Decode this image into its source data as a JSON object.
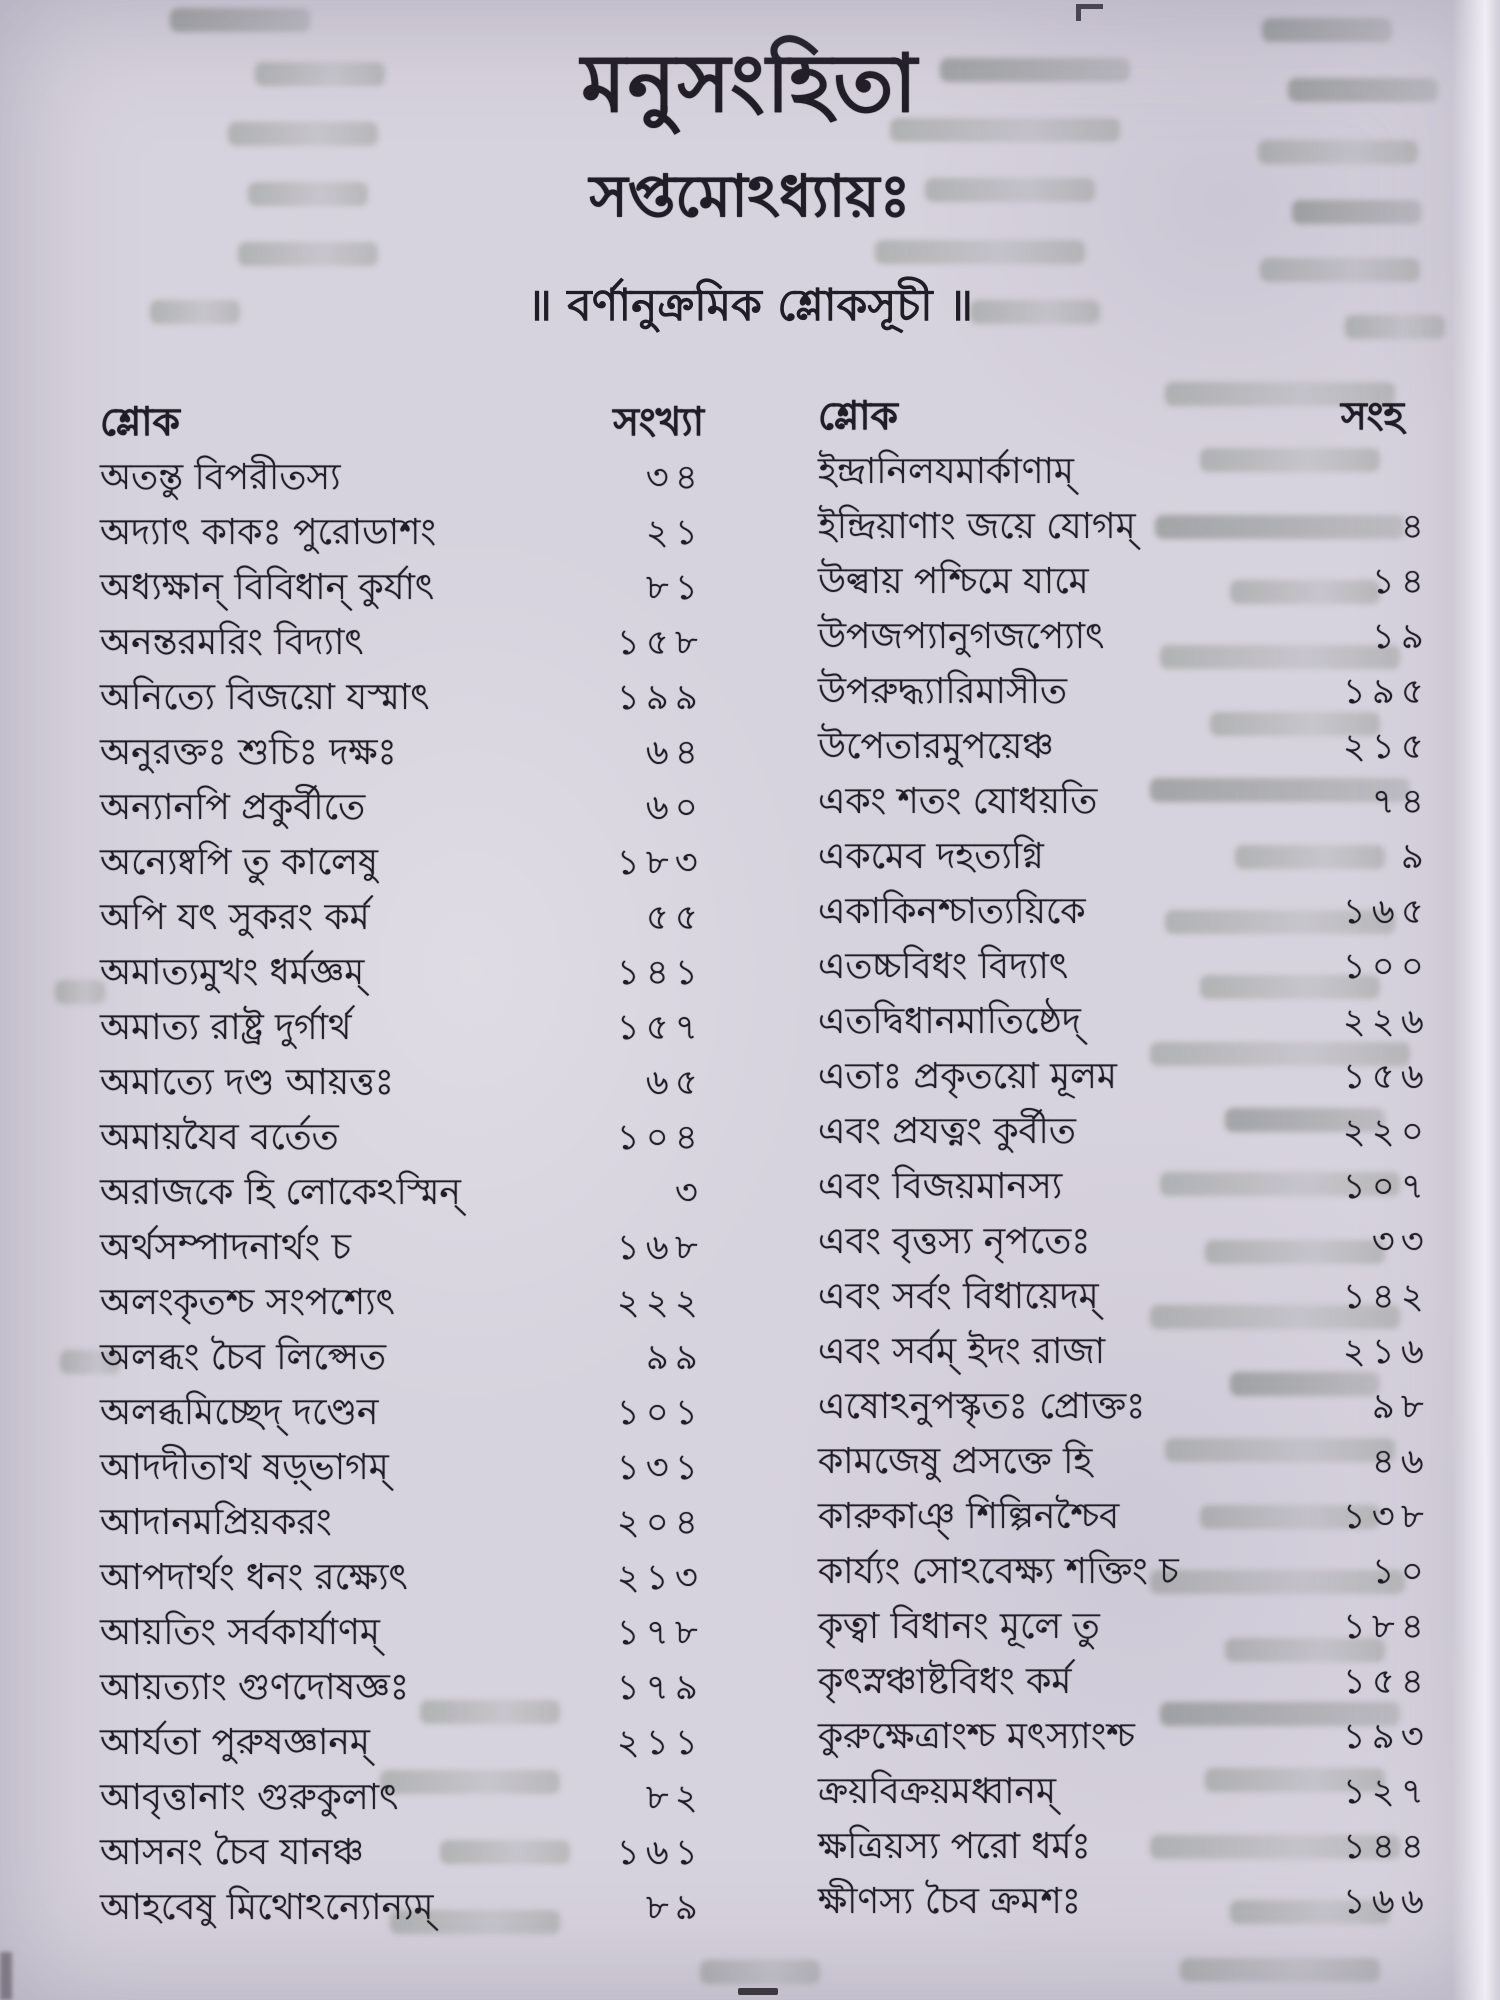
{
  "page": {
    "title": "মনুসংহিতা",
    "chapter": "সপ্তমোঽধ্যায়ঃ",
    "subtitle": "॥ বর্ণানুক্রমিক শ্লোকসূচী ॥"
  },
  "left_column": {
    "header_shloka": "শ্লোক",
    "header_number": "সংখ্যা",
    "rows": [
      {
        "text": "অতন্তু বিপরীতস্য",
        "num": "৩৪"
      },
      {
        "text": "অদ্যাৎ কাকঃ পুরোডাশং",
        "num": "২১"
      },
      {
        "text": "অধ্যক্ষান্ বিবিধান্ কুর্যাৎ",
        "num": "৮১"
      },
      {
        "text": "অনন্তরমরিং বিদ্যাৎ",
        "num": "১৫৮"
      },
      {
        "text": "অনিত্যে বিজয়ো যস্মাৎ",
        "num": "১৯৯"
      },
      {
        "text": "অনুরক্তঃ শুচিঃ দক্ষঃ",
        "num": "৬৪"
      },
      {
        "text": "অন্যানপি প্রকুর্বীতে",
        "num": "৬০"
      },
      {
        "text": "অন্যেষ্বপি তু কালেষু",
        "num": "১৮৩"
      },
      {
        "text": "অপি যৎ সুকরং কর্ম",
        "num": "৫৫"
      },
      {
        "text": "অমাত্যমুখং ধর্মজ্ঞম্",
        "num": "১৪১"
      },
      {
        "text": "অমাত্য রাষ্ট্র দুর্গার্থ",
        "num": "১৫৭"
      },
      {
        "text": "অমাত্যে দণ্ড আয়ত্তঃ",
        "num": "৬৫"
      },
      {
        "text": "অমায়যৈব বর্তেত",
        "num": "১০৪"
      },
      {
        "text": "অরাজকে হি লোকেঽস্মিন্",
        "num": "৩"
      },
      {
        "text": "অর্থসম্পাদনার্থং চ",
        "num": "১৬৮"
      },
      {
        "text": "অলংকৃতশ্চ সংপশ্যেৎ",
        "num": "২২২"
      },
      {
        "text": "অলব্ধং চৈব লিপ্সেত",
        "num": "৯৯"
      },
      {
        "text": "অলব্ধমিচ্ছেদ্ দণ্ডেন",
        "num": "১০১"
      },
      {
        "text": "আদদীতাথ ষড়্ভাগম্",
        "num": "১৩১"
      },
      {
        "text": "আদানমপ্রিয়করং",
        "num": "২০৪"
      },
      {
        "text": "আপদার্থং ধনং রক্ষ্যেৎ",
        "num": "২১৩"
      },
      {
        "text": "আয়তিং সর্বকার্যাণম্",
        "num": "১৭৮"
      },
      {
        "text": "আয়ত্যাং গুণদোষজ্ঞঃ",
        "num": "১৭৯"
      },
      {
        "text": "আর্যতা পুরুষজ্ঞানম্",
        "num": "২১১"
      },
      {
        "text": "আবৃত্তানাং গুরুকুলাৎ",
        "num": "৮২"
      },
      {
        "text": "আসনং চৈব যানঞ্চ",
        "num": "১৬১"
      },
      {
        "text": "আহবেষু মিথোঽন্যোন্যম্",
        "num": "৮৯"
      }
    ]
  },
  "right_column": {
    "header_shloka": "শ্লোক",
    "header_number": "সংহ",
    "rows": [
      {
        "text": "ইন্দ্রানিলযমার্কাণাম্",
        "num": ""
      },
      {
        "text": "ইন্দ্রিয়াণাং জয়ে যোগম্",
        "num": "৪"
      },
      {
        "text": "উল্বায় পশ্চিমে যামে",
        "num": "১৪"
      },
      {
        "text": "উপজপ্যানুগজপ্যোৎ",
        "num": "১৯"
      },
      {
        "text": "উপরুদ্ধ্যারিমাসীত",
        "num": "১৯৫"
      },
      {
        "text": "উপেতারমুপয়েঞ্চ",
        "num": "২১৫"
      },
      {
        "text": "একং শতং যোধয়তি",
        "num": "৭৪"
      },
      {
        "text": "একমেব দহত্যগ্নি",
        "num": "৯"
      },
      {
        "text": "একাকিনশ্চাত্যয়িকে",
        "num": "১৬৫"
      },
      {
        "text": "এতচ্চবিধং বিদ্যাৎ",
        "num": "১০০"
      },
      {
        "text": "এতদ্বিধানমাতিষ্ঠেদ্",
        "num": "২২৬"
      },
      {
        "text": "এতাঃ প্রকৃতয়ো মূলম",
        "num": "১৫৬"
      },
      {
        "text": "এবং প্রযত্নং কুর্বীত",
        "num": "২২০"
      },
      {
        "text": "এবং বিজয়মানস্য",
        "num": "১০৭"
      },
      {
        "text": "এবং বৃত্তস্য নৃপতেঃ",
        "num": "৩৩"
      },
      {
        "text": "এবং সর্বং বিধায়েদম্",
        "num": "১৪২"
      },
      {
        "text": "এবং সর্বম্ ইদং রাজা",
        "num": "২১৬"
      },
      {
        "text": "এষোঽনুপস্কৃতঃ প্রোক্তঃ",
        "num": "৯৮"
      },
      {
        "text": "কামজেষু প্রসক্তে হি",
        "num": "৪৬"
      },
      {
        "text": "কারুকাঞ্ শিল্পিনশ্চৈব",
        "num": "১৩৮"
      },
      {
        "text": "কার্য্যং সোঽবেক্ষ্য শক্তিং চ",
        "num": "১০"
      },
      {
        "text": "কৃত্বা বিধানং মূলে তু",
        "num": "১৮৪"
      },
      {
        "text": "কৃৎস্নঞ্চাষ্টবিধং কর্ম",
        "num": "১৫৪"
      },
      {
        "text": "কুরুক্ষেত্রাংশ্চ মৎস্যাংশ্চ",
        "num": "১৯৩"
      },
      {
        "text": "ক্রয়বিক্রয়মধ্বানম্",
        "num": "১২৭"
      },
      {
        "text": "ক্ষত্রিয়স্য পরো ধর্মঃ",
        "num": "১৪৪"
      },
      {
        "text": "ক্ষীণস্য চৈব ক্রমশঃ",
        "num": "১৬৬"
      }
    ]
  }
}
